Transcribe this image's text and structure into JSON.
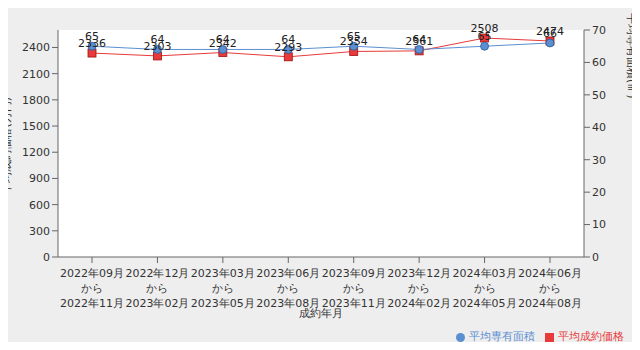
{
  "chart_data": {
    "type": "line",
    "x_label": "成約年月",
    "y_label": "平均成約価格(万円)",
    "y2_label": "平均専有面積(㎡)",
    "categories": [
      "2022年09月\nから\n2022年11月",
      "2022年12月\nから\n2023年02月",
      "2023年03月\nから\n2023年05月",
      "2023年06月\nから\n2023年08月",
      "2023年09月\nから\n2023年11月",
      "2023年12月\nから\n2024年02月",
      "2024年03月\nから\n2024年05月",
      "2024年06月\nから\n2024年08月"
    ],
    "series": [
      {
        "name": "平均成約価格",
        "color": "#e83a3a",
        "marker": "square",
        "values": [
          2336,
          2303,
          2342,
          2293,
          2354,
          2361,
          2508,
          2474
        ]
      },
      {
        "name": "平均専有面積",
        "color": "#5b8fd0",
        "marker": "circle",
        "axis": "y2",
        "values": [
          65,
          64,
          64,
          64,
          65,
          64,
          65,
          66
        ]
      }
    ],
    "ylim": [
      0,
      2600
    ],
    "yticks": [
      0,
      300,
      600,
      900,
      1200,
      1500,
      1800,
      2100,
      2400
    ],
    "y2lim": [
      0,
      70
    ],
    "y2ticks": [
      0,
      10,
      20,
      30,
      40,
      50,
      60,
      70
    ],
    "data_labels": true,
    "grid": false,
    "legend": "bottom right"
  }
}
